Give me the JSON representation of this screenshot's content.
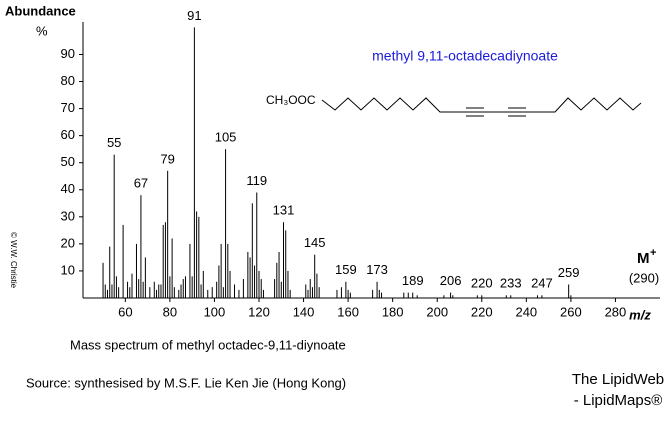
{
  "chart_data": {
    "type": "stick",
    "title": "methyl 9,11-octadecadiynoate",
    "y_label": "Abundance",
    "y_unit": "%",
    "x_label": "m/z",
    "structure_head": "CH₃OOC",
    "molecular_ion": {
      "symbol": "M",
      "charge": "+",
      "mz": "(290)"
    },
    "caption": "Mass spectrum of methyl octadec-9,11-diynoate",
    "source": "Source:  synthesised by M.S.F. Lie Ken Jie (Hong Kong)",
    "credit_1": "The LipidWeb",
    "credit_2": "- LipidMaps®",
    "copyright": "© W.W. Christie",
    "color": "#000000",
    "xlim": [
      41,
      300
    ],
    "ylim": [
      0,
      102
    ],
    "xticks": [
      60,
      80,
      100,
      120,
      140,
      160,
      180,
      200,
      220,
      240,
      260,
      280
    ],
    "yticks": [
      10,
      20,
      30,
      40,
      50,
      60,
      70,
      80,
      90
    ],
    "x": [
      50,
      51,
      52,
      53,
      54,
      55,
      56,
      57,
      59,
      61,
      62,
      63,
      65,
      66,
      67,
      68,
      69,
      71,
      73,
      74,
      75,
      76,
      77,
      78,
      79,
      80,
      81,
      82,
      84,
      85,
      86,
      87,
      89,
      90,
      91,
      92,
      93,
      94,
      95,
      97,
      99,
      101,
      102,
      103,
      104,
      105,
      106,
      107,
      109,
      111,
      113,
      115,
      116,
      117,
      118,
      119,
      120,
      121,
      122,
      127,
      128,
      129,
      130,
      131,
      132,
      133,
      134,
      141,
      142,
      143,
      144,
      145,
      146,
      147,
      155,
      157,
      159,
      160,
      161,
      171,
      173,
      174,
      175,
      185,
      187,
      189,
      191,
      203,
      206,
      207,
      218,
      220,
      231,
      233,
      245,
      247,
      259,
      260
    ],
    "values": [
      13,
      5,
      3,
      19,
      5,
      53,
      8,
      4,
      27,
      6,
      4,
      9,
      20,
      7,
      38,
      6,
      15,
      4,
      6,
      3,
      5,
      5,
      27,
      28,
      47,
      8,
      22,
      4,
      3,
      5,
      7,
      8,
      20,
      8,
      100,
      32,
      30,
      5,
      10,
      3,
      4,
      6,
      12,
      20,
      4,
      55,
      20,
      10,
      5,
      3,
      7,
      17,
      15,
      35,
      12,
      39,
      10,
      7,
      3,
      7,
      13,
      17,
      6,
      28,
      25,
      10,
      3,
      5,
      3,
      7,
      4,
      16,
      9,
      4,
      3,
      4,
      6,
      3,
      2,
      3,
      6,
      3,
      2,
      2,
      2,
      2,
      1,
      1,
      2,
      1,
      1,
      1,
      1,
      1,
      1,
      1,
      5,
      1
    ],
    "labeled_peaks": [
      55,
      67,
      79,
      91,
      105,
      119,
      131,
      145,
      159,
      173,
      189,
      206,
      220,
      233,
      247,
      259
    ]
  }
}
